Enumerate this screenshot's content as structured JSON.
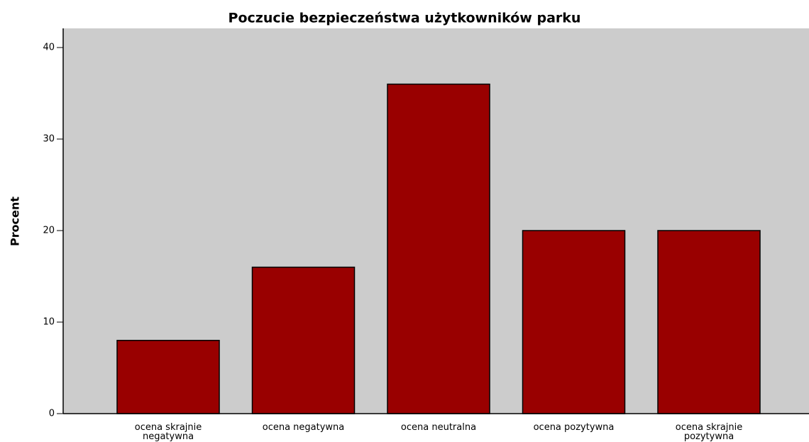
{
  "chart_data": {
    "type": "bar",
    "title": "Poczucie bezpieczeństwa użytkowników parku",
    "y_label": "Procent",
    "categories": [
      "ocena skrajnie negatywna",
      "ocena negatywna",
      "ocena neutralna",
      "ocena pozytywna",
      "ocena skrajnie pozytywna"
    ],
    "values": [
      8,
      16,
      36,
      20,
      20
    ],
    "color": "#990000",
    "ylim": [
      0,
      40
    ],
    "yticks": [
      0,
      10,
      20,
      30,
      40
    ],
    "grid": false
  }
}
